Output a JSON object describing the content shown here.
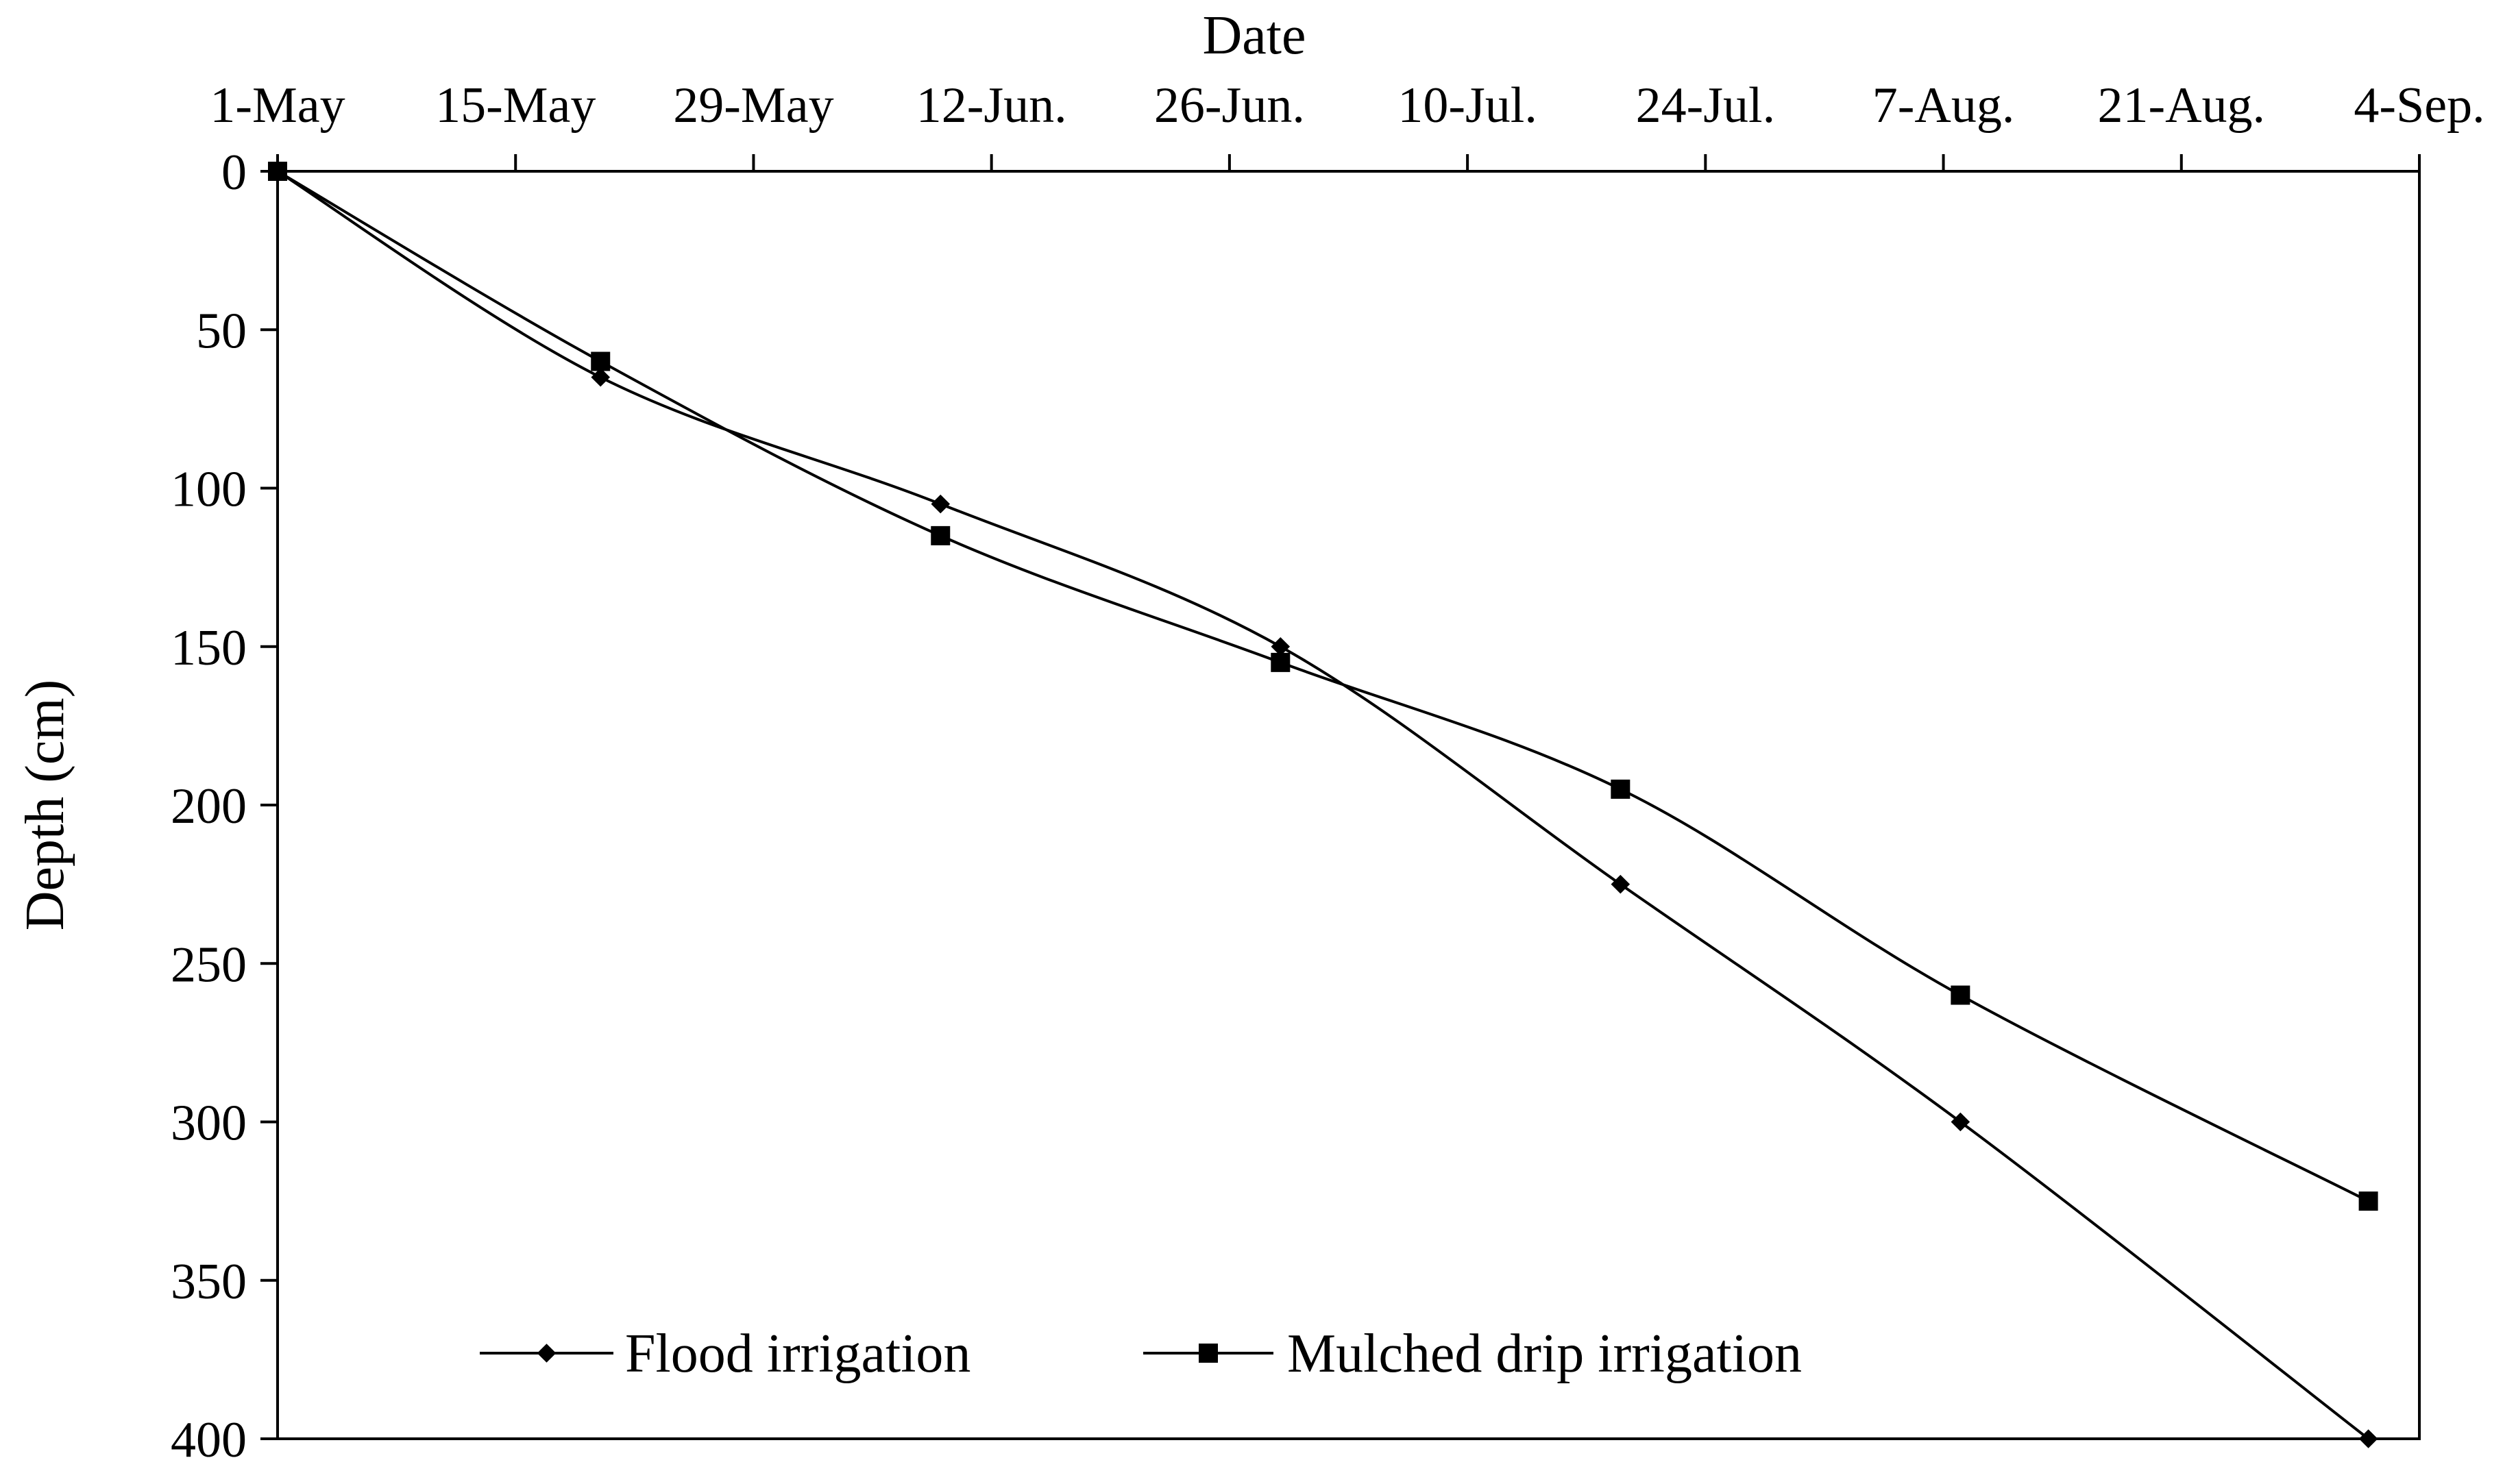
{
  "chart_data": {
    "type": "line",
    "title": "",
    "xlabel": "Date",
    "ylabel": "Depth (cm)",
    "x_tick_labels": [
      "1-May",
      "15-May",
      "29-May",
      "12-Jun.",
      "26-Jun.",
      "10-Jul.",
      "24-Jul.",
      "7-Aug.",
      "21-Aug.",
      "4-Sep."
    ],
    "x_tick_days": [
      0,
      14,
      28,
      42,
      56,
      70,
      84,
      98,
      112,
      126
    ],
    "xlim": [
      0,
      126
    ],
    "y_tick_labels": [
      "0",
      "50",
      "100",
      "150",
      "200",
      "250",
      "300",
      "350",
      "400"
    ],
    "y_ticks": [
      0,
      50,
      100,
      150,
      200,
      250,
      300,
      350,
      400
    ],
    "ylim": [
      0,
      400
    ],
    "y_inverted": true,
    "grid": false,
    "legend_position": "bottom-center",
    "series": [
      {
        "name": "Flood irrigation",
        "marker": "diamond",
        "color": "#000000",
        "x_days": [
          0,
          19,
          39,
          59,
          79,
          99,
          123
        ],
        "values": [
          0,
          65,
          105,
          150,
          225,
          300,
          400
        ]
      },
      {
        "name": "Mulched drip irrigation",
        "marker": "square",
        "color": "#000000",
        "x_days": [
          0,
          19,
          39,
          59,
          79,
          99,
          123
        ],
        "values": [
          0,
          60,
          115,
          155,
          195,
          260,
          325
        ]
      }
    ]
  }
}
